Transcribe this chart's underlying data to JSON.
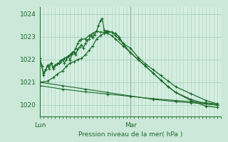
{
  "bg_color": "#cce8d8",
  "plot_bg": "#d4eee0",
  "grid_color": "#a8cfc0",
  "line_color": "#1a6b2a",
  "dark_line": "#2a7a3a",
  "title": "Pression niveau de la mer( hPa )",
  "ylim": [
    1019.5,
    1024.3
  ],
  "yticks": [
    1020,
    1021,
    1022,
    1023,
    1024
  ],
  "xlim": [
    0,
    48
  ],
  "lun_x": 0,
  "mar_x": 24,
  "series": {
    "s1": [
      [
        0,
        1022.05
      ],
      [
        0.5,
        1021.7
      ],
      [
        1,
        1021.4
      ],
      [
        1.5,
        1021.55
      ],
      [
        2,
        1021.7
      ],
      [
        3,
        1021.85
      ],
      [
        3.5,
        1021.65
      ],
      [
        4,
        1021.75
      ],
      [
        4.5,
        1021.8
      ],
      [
        5,
        1021.85
      ],
      [
        5.5,
        1021.9
      ],
      [
        6,
        1022.0
      ],
      [
        6.5,
        1022.05
      ],
      [
        7,
        1022.1
      ],
      [
        7.5,
        1022.15
      ],
      [
        8,
        1022.2
      ],
      [
        8.5,
        1022.3
      ],
      [
        9,
        1022.35
      ],
      [
        9.5,
        1022.5
      ],
      [
        10,
        1022.7
      ],
      [
        10.5,
        1022.85
      ],
      [
        11,
        1022.9
      ],
      [
        12,
        1022.9
      ],
      [
        13,
        1023.05
      ],
      [
        14,
        1023.15
      ],
      [
        15,
        1023.25
      ],
      [
        16,
        1023.2
      ],
      [
        17,
        1023.2
      ],
      [
        18,
        1023.15
      ],
      [
        19,
        1023.05
      ],
      [
        20,
        1022.9
      ],
      [
        22,
        1022.6
      ],
      [
        24,
        1022.3
      ],
      [
        26,
        1022.0
      ],
      [
        28,
        1021.7
      ],
      [
        30,
        1021.4
      ],
      [
        32,
        1021.1
      ],
      [
        34,
        1020.8
      ],
      [
        36,
        1020.55
      ],
      [
        40,
        1020.25
      ],
      [
        44,
        1020.05
      ],
      [
        47,
        1020.0
      ]
    ],
    "s2": [
      [
        0,
        1021.0
      ],
      [
        2,
        1021.05
      ],
      [
        3.5,
        1021.2
      ],
      [
        4.5,
        1021.35
      ],
      [
        6,
        1021.5
      ],
      [
        7,
        1021.7
      ],
      [
        8,
        1021.85
      ],
      [
        9,
        1021.9
      ],
      [
        10,
        1022.0
      ],
      [
        11,
        1022.05
      ],
      [
        12,
        1022.2
      ],
      [
        13,
        1022.4
      ],
      [
        14,
        1022.6
      ],
      [
        15,
        1022.9
      ],
      [
        16,
        1023.05
      ],
      [
        17,
        1023.15
      ],
      [
        18,
        1023.2
      ],
      [
        19,
        1023.2
      ],
      [
        20,
        1023.15
      ],
      [
        21,
        1023.0
      ],
      [
        22,
        1022.7
      ],
      [
        24,
        1022.5
      ],
      [
        26,
        1022.1
      ],
      [
        28,
        1021.8
      ],
      [
        30,
        1021.55
      ],
      [
        32,
        1021.3
      ],
      [
        34,
        1021.05
      ],
      [
        36,
        1020.8
      ],
      [
        40,
        1020.5
      ],
      [
        44,
        1020.2
      ],
      [
        47,
        1020.05
      ]
    ],
    "s3_jagged": [
      [
        0,
        1022.05
      ],
      [
        0.5,
        1021.7
      ],
      [
        1,
        1021.3
      ],
      [
        1.5,
        1021.55
      ],
      [
        2,
        1021.75
      ],
      [
        2.5,
        1021.6
      ],
      [
        3,
        1021.85
      ],
      [
        3.5,
        1021.6
      ],
      [
        4,
        1021.75
      ],
      [
        4.5,
        1021.8
      ],
      [
        5,
        1021.85
      ],
      [
        5.5,
        1021.95
      ],
      [
        6,
        1022.0
      ],
      [
        6.5,
        1021.85
      ],
      [
        7,
        1022.0
      ],
      [
        7.5,
        1022.15
      ],
      [
        8,
        1021.95
      ],
      [
        8.5,
        1022.25
      ],
      [
        9,
        1022.3
      ],
      [
        9.5,
        1022.2
      ],
      [
        10,
        1022.45
      ],
      [
        10.5,
        1022.55
      ],
      [
        11,
        1022.65
      ],
      [
        11.5,
        1022.5
      ],
      [
        12,
        1022.7
      ],
      [
        12.5,
        1022.85
      ],
      [
        13,
        1022.9
      ],
      [
        13.5,
        1023.05
      ],
      [
        14,
        1022.95
      ],
      [
        14.5,
        1023.1
      ],
      [
        15,
        1023.25
      ],
      [
        15.5,
        1023.5
      ],
      [
        16,
        1023.7
      ],
      [
        16.5,
        1023.8
      ],
      [
        17,
        1023.3
      ],
      [
        17.5,
        1023.25
      ],
      [
        18,
        1023.25
      ],
      [
        19,
        1023.2
      ],
      [
        20,
        1023.05
      ],
      [
        21,
        1022.9
      ],
      [
        22,
        1022.7
      ],
      [
        24,
        1022.3
      ],
      [
        26,
        1022.0
      ],
      [
        28,
        1021.7
      ],
      [
        30,
        1021.4
      ],
      [
        32,
        1021.1
      ],
      [
        34,
        1020.8
      ],
      [
        36,
        1020.55
      ],
      [
        40,
        1020.2
      ],
      [
        44,
        1019.95
      ],
      [
        47,
        1019.9
      ]
    ],
    "s4_flat1": [
      [
        0,
        1021.0
      ],
      [
        6,
        1020.85
      ],
      [
        12,
        1020.7
      ],
      [
        18,
        1020.55
      ],
      [
        24,
        1020.4
      ],
      [
        30,
        1020.25
      ],
      [
        36,
        1020.15
      ],
      [
        40,
        1020.1
      ],
      [
        44,
        1020.05
      ],
      [
        47,
        1020.0
      ]
    ],
    "s4_flat2": [
      [
        0,
        1020.85
      ],
      [
        6,
        1020.7
      ],
      [
        12,
        1020.58
      ],
      [
        18,
        1020.48
      ],
      [
        24,
        1020.38
      ],
      [
        30,
        1020.28
      ],
      [
        36,
        1020.2
      ],
      [
        40,
        1020.15
      ],
      [
        44,
        1020.1
      ],
      [
        47,
        1020.05
      ]
    ]
  }
}
